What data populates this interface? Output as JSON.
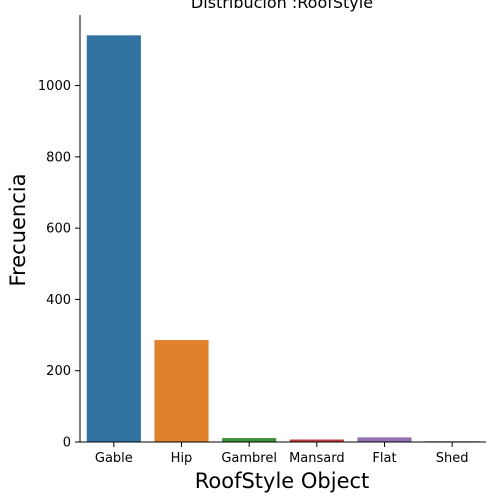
{
  "chart_data": {
    "type": "bar",
    "title": "Distribución :RoofStyle",
    "xlabel": "RoofStyle Object",
    "ylabel": "Frecuencia",
    "categories": [
      "Gable",
      "Hip",
      "Gambrel",
      "Mansard",
      "Flat",
      "Shed"
    ],
    "values": [
      1141,
      286,
      11,
      7,
      13,
      2
    ],
    "colors": [
      "#3274a1",
      "#e1812c",
      "#3a923a",
      "#c03d3e",
      "#9372b2",
      "#845b53"
    ],
    "yticks": [
      0,
      200,
      400,
      600,
      800,
      1000
    ],
    "ylim": [
      0,
      1198
    ],
    "grid": false,
    "legend": false
  }
}
